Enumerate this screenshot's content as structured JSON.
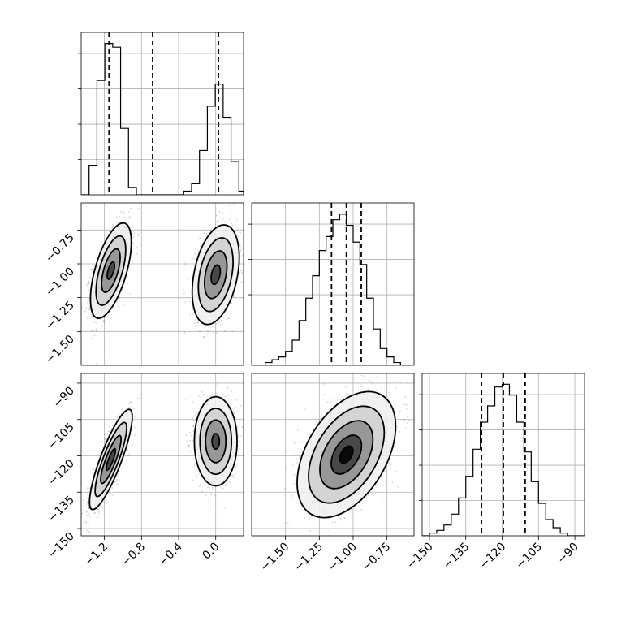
{
  "chart_data": {
    "type": "corner",
    "parameters": [
      {
        "id": "p0",
        "range": [
          -1.45,
          0.3
        ],
        "ticks": [
          -1.2,
          -0.8,
          -0.4,
          0.0
        ],
        "tick_labels": [
          "−1.2",
          "−0.8",
          "−0.4",
          "0.0"
        ],
        "quantiles": [
          -1.15,
          -0.68,
          0.03
        ],
        "hist": {
          "edges": [
            -1.45,
            -1.365,
            -1.28,
            -1.195,
            -1.11,
            -1.025,
            -0.94,
            -0.855,
            -0.77,
            -0.685,
            -0.6,
            -0.515,
            -0.43,
            -0.345,
            -0.26,
            -0.175,
            -0.09,
            -0.005,
            0.08,
            0.165,
            0.25,
            0.3
          ],
          "counts": [
            0,
            8,
            31,
            41,
            40,
            18,
            2,
            0,
            0,
            0,
            0,
            0,
            0,
            1,
            3,
            12,
            24,
            30,
            21,
            9,
            1
          ]
        },
        "hist_ymax": 44
      },
      {
        "id": "p1",
        "range": [
          -1.75,
          -0.55
        ],
        "ticks": [
          -1.5,
          -1.25,
          -1.0,
          -0.75
        ],
        "tick_labels": [
          "−1.50",
          "−1.25",
          "−1.00",
          "−0.75"
        ],
        "quantiles": [
          -1.16,
          -1.05,
          -0.94
        ],
        "hist": {
          "edges": [
            -1.75,
            -1.7,
            -1.65,
            -1.6,
            -1.55,
            -1.5,
            -1.45,
            -1.4,
            -1.35,
            -1.3,
            -1.25,
            -1.2,
            -1.15,
            -1.1,
            -1.05,
            -1.0,
            -0.95,
            -0.9,
            -0.85,
            -0.8,
            -0.75,
            -0.7,
            -0.65,
            -0.6,
            -0.55
          ],
          "counts": [
            0,
            0,
            1,
            2,
            3,
            5,
            9,
            16,
            24,
            32,
            41,
            46,
            52,
            54,
            50,
            44,
            36,
            24,
            13,
            6,
            3,
            1,
            0,
            0
          ]
        },
        "hist_ymax": 58
      },
      {
        "id": "p2",
        "range": [
          -153,
          -86
        ],
        "ticks": [
          -150,
          -135,
          -120,
          -105,
          -90
        ],
        "tick_labels": [
          "−150",
          "−135",
          "−120",
          "−105",
          "−90"
        ],
        "quantiles": [
          -128.5,
          -119.5,
          -110.5
        ],
        "hist": {
          "edges": [
            -153,
            -150,
            -147,
            -144,
            -141,
            -138,
            -135,
            -132,
            -129,
            -126,
            -123,
            -120,
            -117,
            -114,
            -111,
            -108,
            -105,
            -102,
            -99,
            -96,
            -93,
            -90,
            -87,
            -86
          ],
          "counts": [
            0,
            1,
            2,
            4,
            8,
            14,
            22,
            32,
            42,
            48,
            55,
            56,
            52,
            42,
            31,
            20,
            12,
            6,
            3,
            1,
            0,
            0,
            0
          ]
        },
        "hist_ymax": 60
      }
    ],
    "pairs": [
      {
        "x": "p0",
        "y": "p1",
        "clusters": [
          {
            "center": [
              -1.13,
              -1.05
            ],
            "sigma": [
              0.1,
              0.16
            ],
            "rho": 0.6,
            "n": 1500,
            "contours": [
              0.4,
              1.0,
              1.6,
              2.2
            ]
          },
          {
            "center": [
              0.0,
              -1.08
            ],
            "sigma": [
              0.11,
              0.16
            ],
            "rho": 0.35,
            "n": 1500,
            "contours": [
              0.45,
              1.1,
              1.7,
              2.3
            ]
          }
        ]
      },
      {
        "x": "p0",
        "y": "p2",
        "clusters": [
          {
            "center": [
              -1.13,
              -121.5
            ],
            "sigma": [
              0.1,
              9.0
            ],
            "rho": 0.85,
            "n": 1500,
            "contours": [
              0.5,
              1.1,
              1.7,
              2.3
            ]
          },
          {
            "center": [
              0.0,
              -114.0
            ],
            "sigma": [
              0.1,
              8.0
            ],
            "rho": 0.0,
            "n": 1500,
            "contours": [
              0.4,
              1.1,
              1.7,
              2.3
            ]
          }
        ]
      },
      {
        "x": "p1",
        "y": "p2",
        "clusters": [
          {
            "center": [
              -1.05,
              -119.5
            ],
            "sigma": [
              0.14,
              10.0
            ],
            "rho": 0.45,
            "n": 3000,
            "contours": [
              0.35,
              0.8,
              1.4,
              2.0,
              2.6
            ]
          }
        ]
      }
    ]
  }
}
